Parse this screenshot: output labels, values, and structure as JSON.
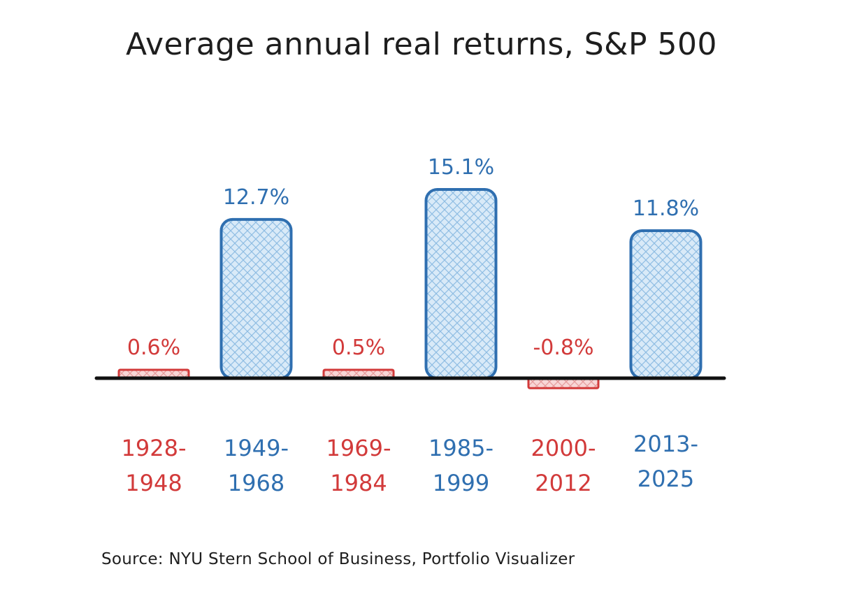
{
  "title": "Average annual real returns, S&P 500",
  "source": "Source: NYU Stern School of Business, Portfolio Visualizer",
  "colors": {
    "positive": "#2f6fb0",
    "negative": "#d23a3a",
    "positive_fill": "#cfe3f5",
    "negative_fill": "#f6c9c9",
    "axis": "#111111"
  },
  "chart_data": {
    "type": "bar",
    "title": "Average annual real returns, S&P 500",
    "categories": [
      [
        "1928-",
        "1948"
      ],
      [
        "1949-",
        "1968"
      ],
      [
        "1969-",
        "1984"
      ],
      [
        "1985-",
        "1999"
      ],
      [
        "2000-",
        "2012"
      ],
      [
        "2013-",
        "2025"
      ]
    ],
    "values": [
      0.6,
      12.7,
      0.5,
      15.1,
      -0.8,
      11.8
    ],
    "value_labels": [
      "0.6%",
      "12.7%",
      "0.5%",
      "15.1%",
      "-0.8%",
      "11.8%"
    ],
    "label_colors": [
      "negative",
      "positive",
      "negative",
      "positive",
      "negative",
      "positive"
    ],
    "xlabel": "",
    "ylabel": "",
    "grid": false,
    "legend": "none"
  }
}
